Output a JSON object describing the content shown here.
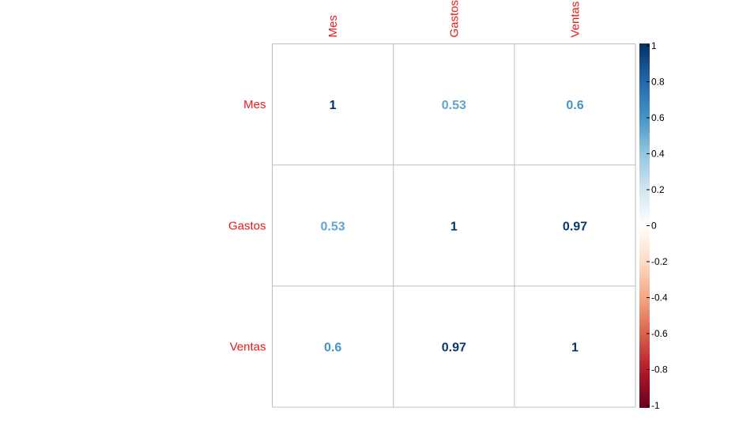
{
  "chart_data": {
    "type": "heatmap",
    "variables": [
      "Mes",
      "Gastos",
      "Ventas"
    ],
    "matrix": [
      [
        1,
        0.53,
        0.6
      ],
      [
        0.53,
        1,
        0.97
      ],
      [
        0.6,
        0.97,
        1
      ]
    ],
    "cell_labels": [
      [
        "1",
        "0.53",
        "0.6"
      ],
      [
        "0.53",
        "1",
        "0.97"
      ],
      [
        "0.6",
        "0.97",
        "1"
      ]
    ],
    "colorbar": {
      "range": [
        -1,
        1
      ],
      "ticks": [
        "1",
        "0.8",
        "0.6",
        "0.4",
        "0.2",
        "0",
        "-0.2",
        "-0.4",
        "-0.6",
        "-0.8",
        "-1"
      ],
      "colors": [
        "#67001F",
        "#B2182B",
        "#D6604D",
        "#F4A582",
        "#FDDBC7",
        "#FFFFFF",
        "#D1E5F0",
        "#92C5DE",
        "#4393C3",
        "#2166AC",
        "#053061"
      ]
    },
    "label_color": "#E41A1C",
    "grid_color": "#BEBEBE"
  }
}
